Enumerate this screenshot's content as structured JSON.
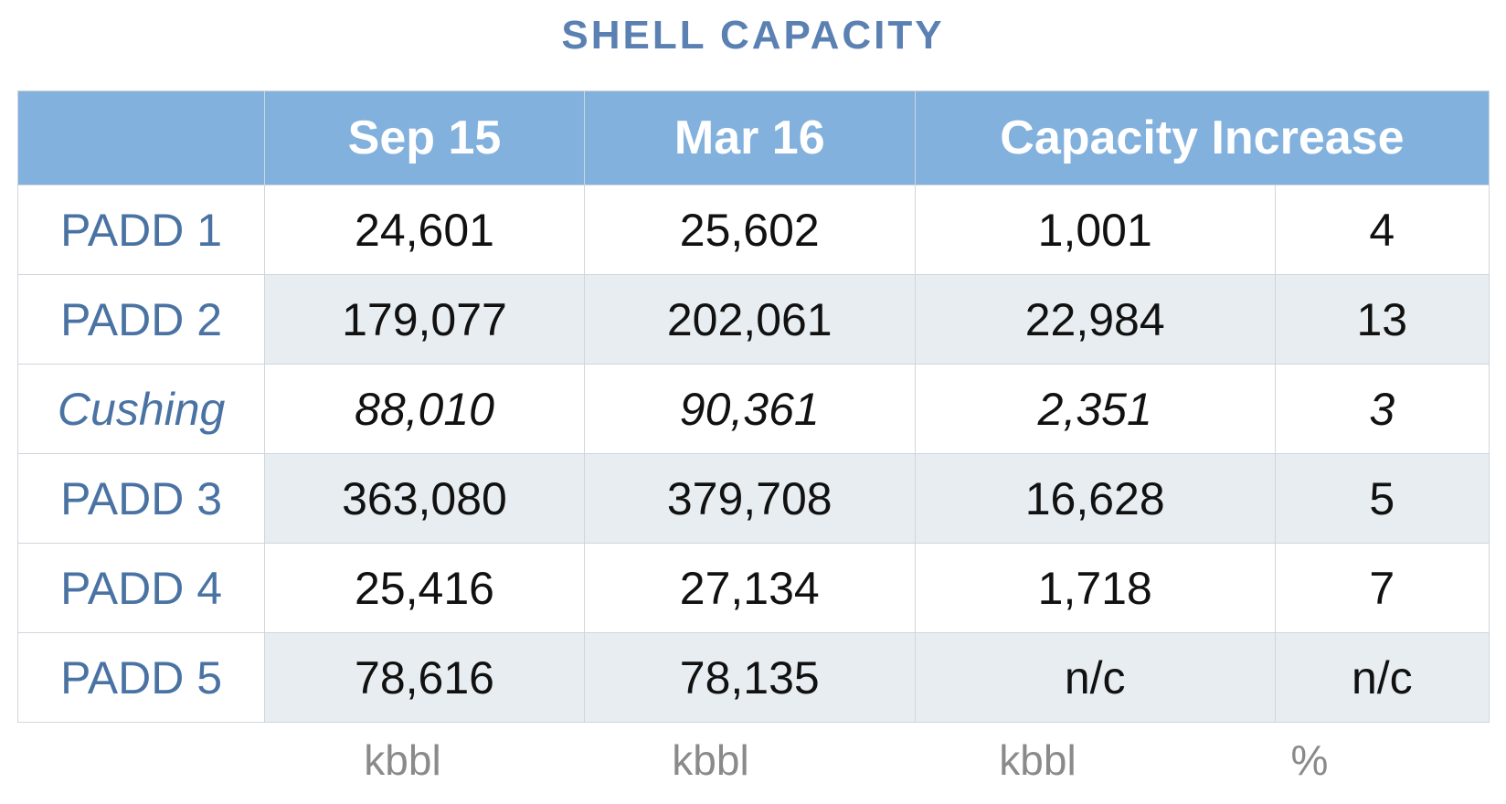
{
  "chart_data": {
    "type": "table",
    "title": "SHELL CAPACITY",
    "columns": [
      "",
      "Sep 15",
      "Mar 16",
      "Capacity Increase"
    ],
    "rows": [
      {
        "label": "PADD 1",
        "sep15": "24,601",
        "mar16": "25,602",
        "increase": "1,001",
        "pct": "4",
        "italic": false
      },
      {
        "label": "PADD 2",
        "sep15": "179,077",
        "mar16": "202,061",
        "increase": "22,984",
        "pct": "13",
        "italic": false
      },
      {
        "label": "Cushing",
        "sep15": "88,010",
        "mar16": "90,361",
        "increase": "2,351",
        "pct": "3",
        "italic": true
      },
      {
        "label": "PADD 3",
        "sep15": "363,080",
        "mar16": "379,708",
        "increase": "16,628",
        "pct": "5",
        "italic": false
      },
      {
        "label": "PADD 4",
        "sep15": "25,416",
        "mar16": "27,134",
        "increase": "1,718",
        "pct": "7",
        "italic": false
      },
      {
        "label": "PADD 5",
        "sep15": "78,616",
        "mar16": "78,135",
        "increase": "n/c",
        "pct": "n/c",
        "italic": false
      }
    ],
    "units": [
      "kbbl",
      "kbbl",
      "kbbl",
      "%"
    ]
  },
  "colors": {
    "title": "#5b80b2",
    "header_bg": "#82b1dd",
    "row_label": "#4a73a3",
    "alt_row_bg": "#e7edf0"
  }
}
